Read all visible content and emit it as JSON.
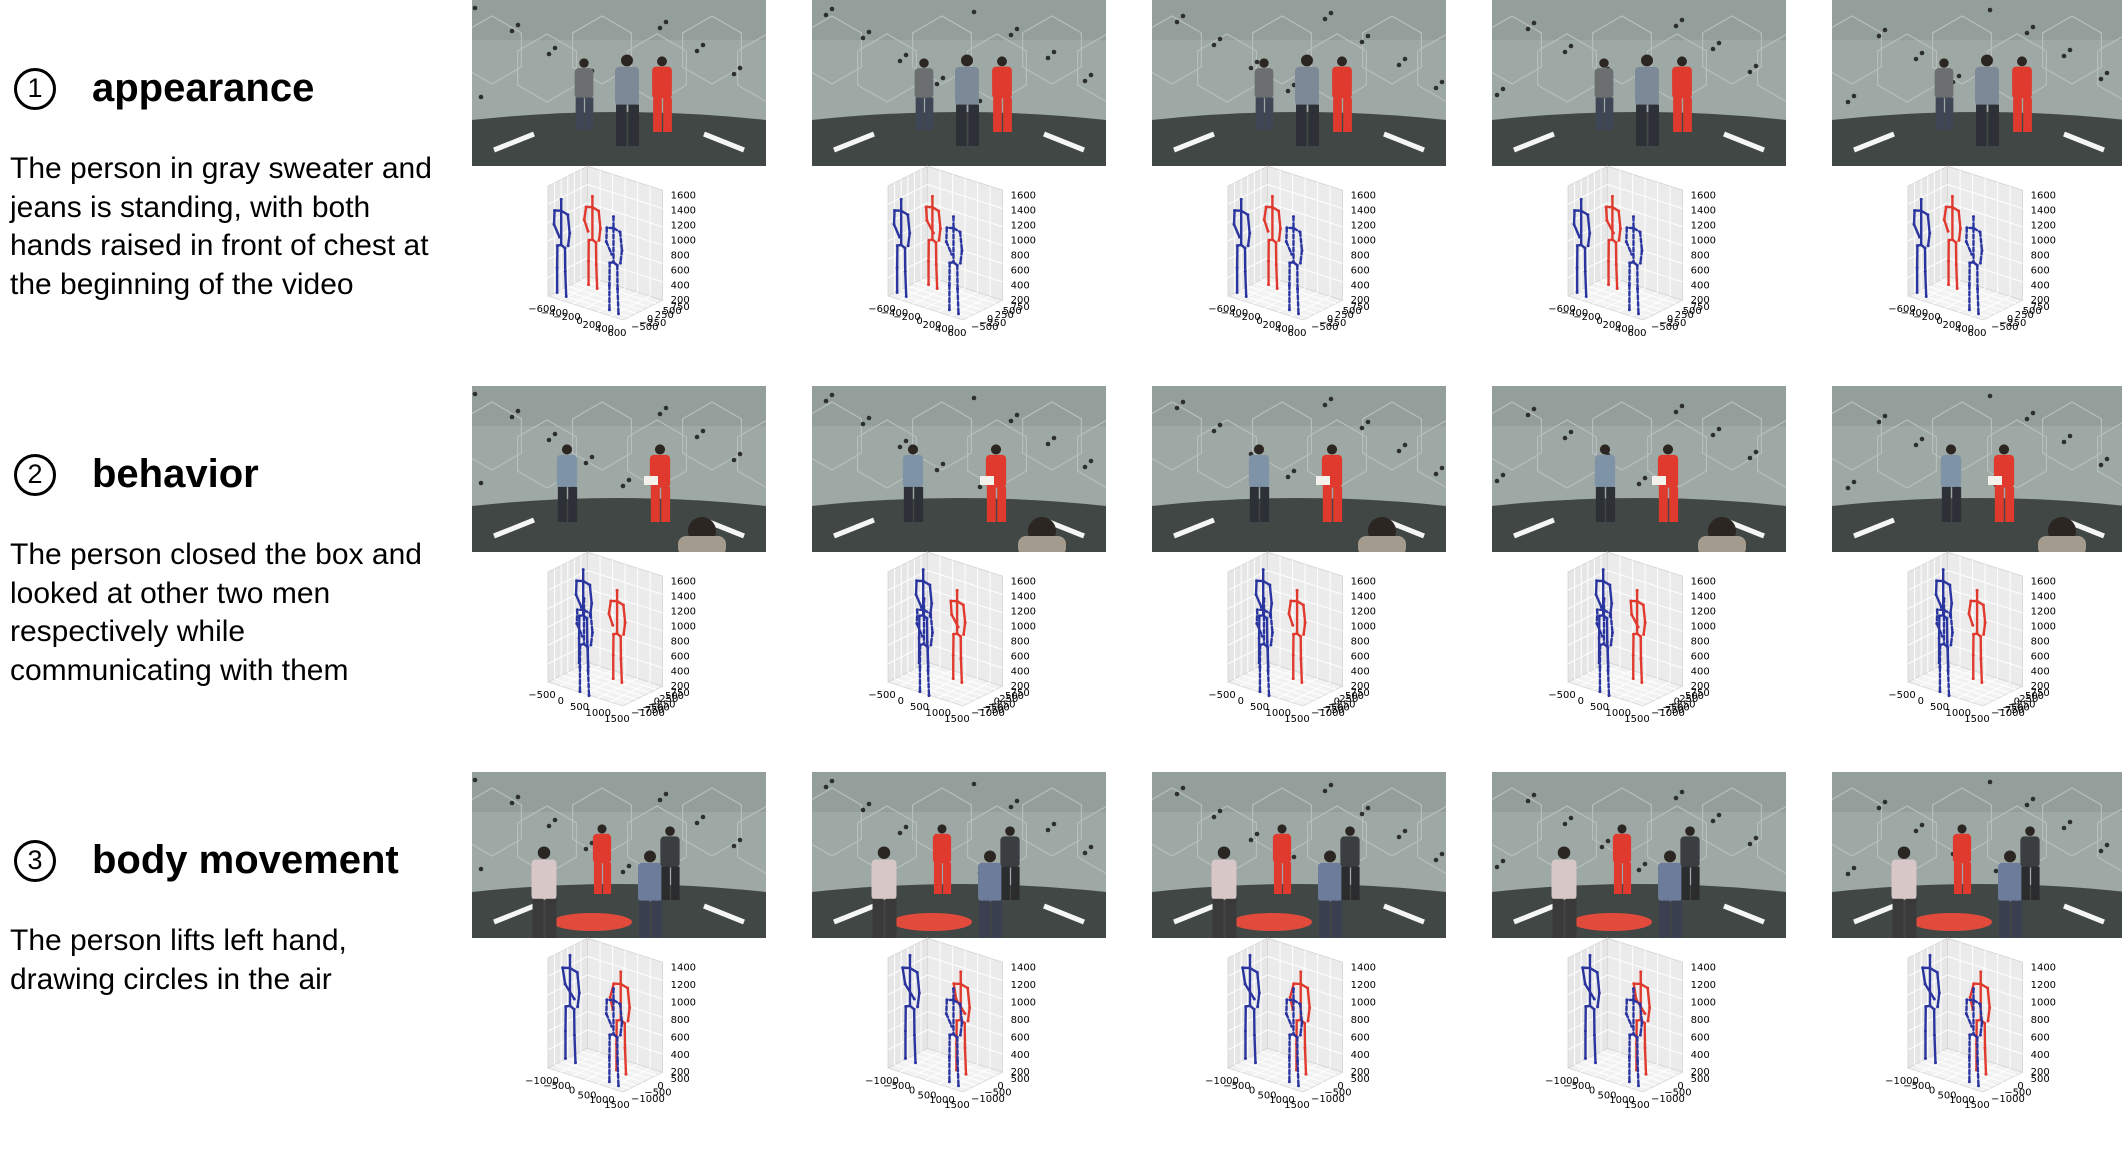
{
  "rows": [
    {
      "number": "①",
      "heading": "appearance",
      "description": "The person in gray sweater and jeans is standing, with both hands raised in front of chest at the beginning of the video",
      "scene": "dome-3people-center",
      "plot_ticks": {
        "x": [
          "−600",
          "−400",
          "−200",
          "0",
          "200",
          "400",
          "600"
        ],
        "y": [
          "750",
          "500",
          "250",
          "0",
          "−250",
          "−500"
        ],
        "z": [
          "1600",
          "1400",
          "1200",
          "1000",
          "800",
          "600",
          "400",
          "200"
        ]
      },
      "frames": 5
    },
    {
      "number": "②",
      "heading": "behavior",
      "description": "The person closed the box and looked at other two men respectively while communicating with them",
      "scene": "dome-3people-box",
      "plot_ticks": {
        "x": [
          "−500",
          "0",
          "500",
          "1000",
          "1500"
        ],
        "y": [
          "750",
          "500",
          "250",
          "0",
          "−250",
          "−500",
          "−750",
          "−1000"
        ],
        "z": [
          "1600",
          "1400",
          "1200",
          "1000",
          "800",
          "600",
          "400",
          "200"
        ]
      },
      "frames": 5
    },
    {
      "number": "③",
      "heading": "body movement",
      "description": "The person lifts left hand, drawing circles in the air",
      "scene": "dome-group-pizza",
      "plot_ticks": {
        "x": [
          "−1000",
          "−500",
          "0",
          "500",
          "1000",
          "1500"
        ],
        "y": [
          "500",
          "0",
          "−500",
          "−1000"
        ],
        "z": [
          "1400",
          "1200",
          "1000",
          "800",
          "600",
          "400",
          "200"
        ]
      },
      "frames": 5
    }
  ],
  "colors": {
    "target_person": "#e03a2e",
    "other_person": "#2a35a0",
    "dome_wall": "#9aa3a0",
    "floor": "#3d4240"
  }
}
